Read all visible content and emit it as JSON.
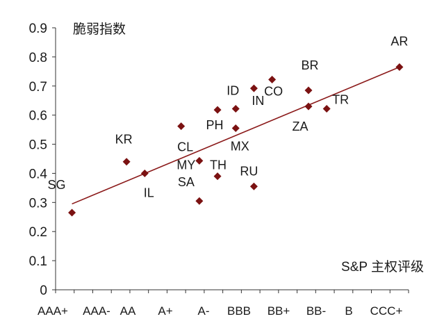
{
  "chart_data": {
    "type": "scatter",
    "title": "",
    "ylabel": "脆弱指数",
    "xlabel": "S&P 主权评级",
    "ylim": [
      0,
      0.9
    ],
    "yticks": [
      0,
      0.1,
      0.2,
      0.3,
      0.4,
      0.5,
      0.6,
      0.7,
      0.8,
      0.9
    ],
    "categories": [
      "AAA+",
      "AAA-",
      "AA",
      "A+",
      "A-",
      "BBB",
      "BB+",
      "BB-",
      "B",
      "CCC+"
    ],
    "grid": false,
    "legend": "none",
    "points": [
      {
        "label": "SG",
        "x": 0.9,
        "y": 0.265
      },
      {
        "label": "KR",
        "x": 3.9,
        "y": 0.44
      },
      {
        "label": "IL",
        "x": 4.9,
        "y": 0.4
      },
      {
        "label": "CL",
        "x": 6.9,
        "y": 0.562
      },
      {
        "label": "MY",
        "x": 7.9,
        "y": 0.443
      },
      {
        "label": "SA",
        "x": 7.9,
        "y": 0.305
      },
      {
        "label": "PH",
        "x": 8.9,
        "y": 0.618
      },
      {
        "label": "TH",
        "x": 8.9,
        "y": 0.39
      },
      {
        "label": "ID",
        "x": 9.9,
        "y": 0.622
      },
      {
        "label": "MX",
        "x": 9.9,
        "y": 0.555
      },
      {
        "label": "IN",
        "x": 10.9,
        "y": 0.692
      },
      {
        "label": "RU",
        "x": 10.9,
        "y": 0.355
      },
      {
        "label": "CO",
        "x": 11.9,
        "y": 0.722
      },
      {
        "label": "BR",
        "x": 13.9,
        "y": 0.685
      },
      {
        "label": "ZA",
        "x": 13.9,
        "y": 0.63
      },
      {
        "label": "TR",
        "x": 14.9,
        "y": 0.622
      },
      {
        "label": "AR",
        "x": 18.9,
        "y": 0.765
      }
    ],
    "trendline": {
      "x": [
        0.9,
        18.9
      ],
      "y": [
        0.295,
        0.765
      ]
    },
    "colors": {
      "marker": "#7b1212",
      "trendline": "#8b1a1a",
      "axis": "#333333"
    }
  }
}
